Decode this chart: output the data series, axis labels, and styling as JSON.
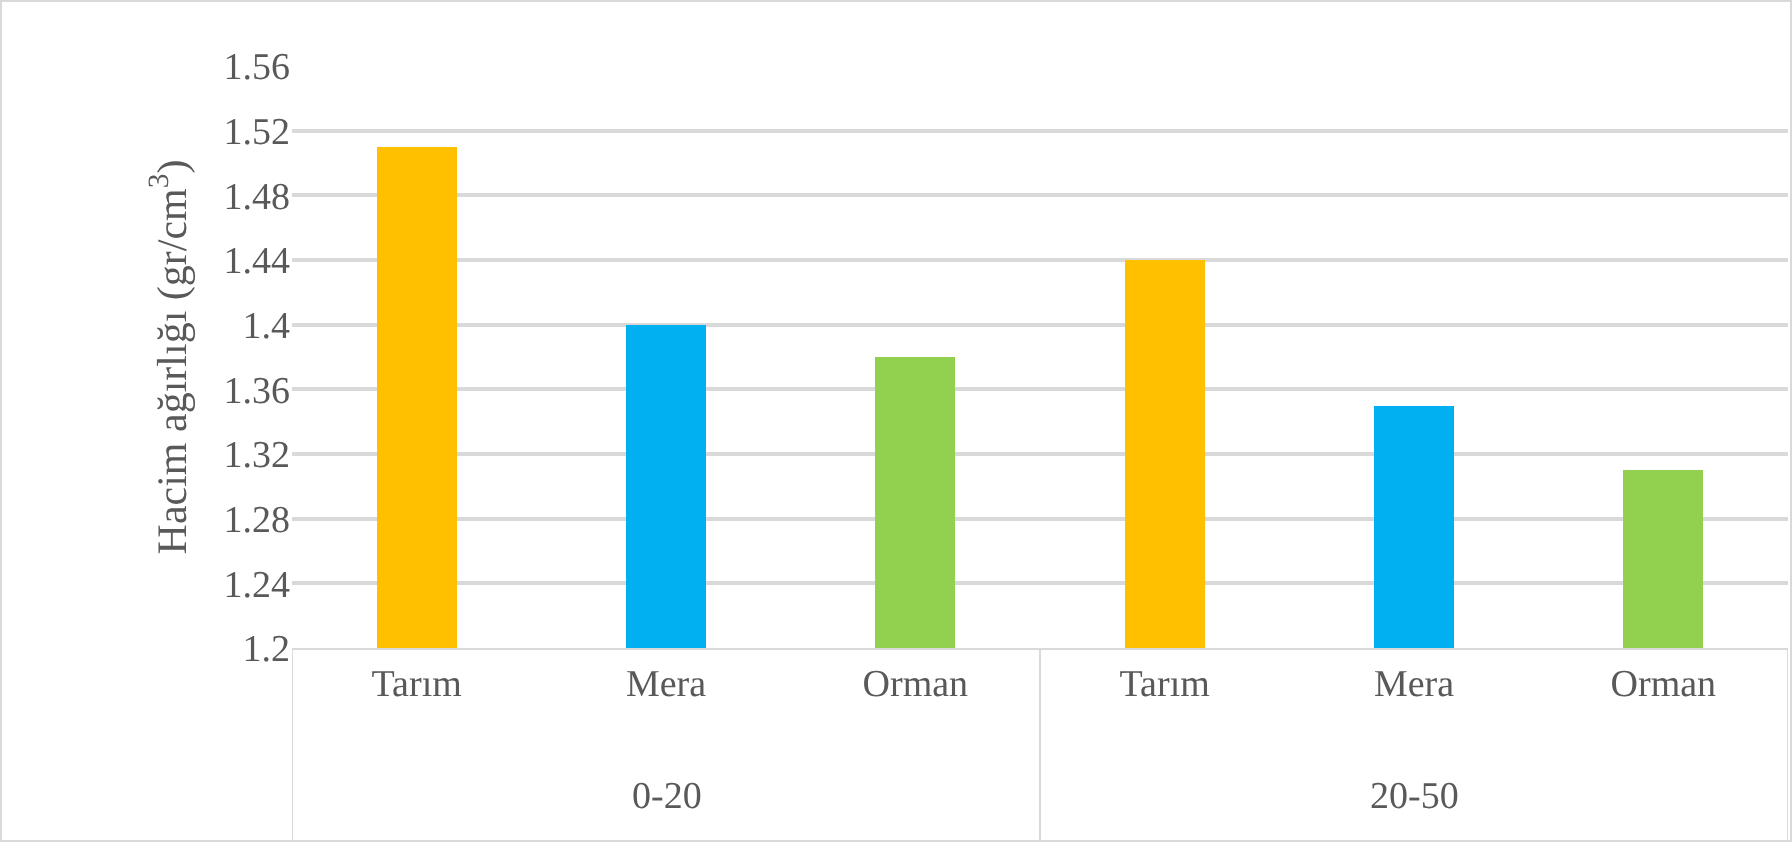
{
  "chart_data": {
    "type": "bar",
    "ylabel": "Hacim ağırlığı (gr/cm$^{3}$)",
    "categories": [
      "Tarım",
      "Mera",
      "Orman",
      "Tarım",
      "Mera",
      "Orman"
    ],
    "values": [
      1.51,
      1.4,
      1.38,
      1.44,
      1.35,
      1.31
    ],
    "colors": [
      "#ffc000",
      "#00b0f0",
      "#92d050",
      "#ffc000",
      "#00b0f0",
      "#92d050"
    ],
    "ylim": [
      1.2,
      1.56
    ],
    "yticks": [
      1.2,
      1.24,
      1.28,
      1.32,
      1.36,
      {
        "value": 1.4,
        "label": "1.4"
      },
      1.44,
      1.48,
      1.52,
      1.56
    ],
    "grid": true,
    "annotations": [
      "0-20",
      "20-50"
    ]
  }
}
